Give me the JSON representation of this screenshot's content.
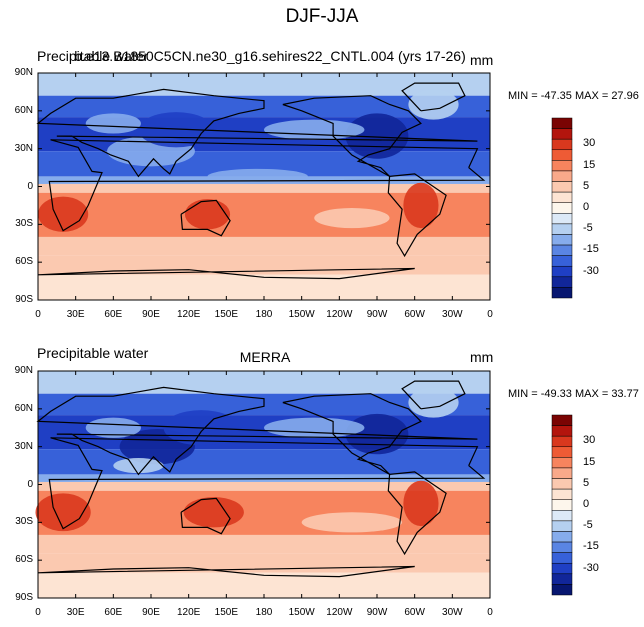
{
  "figure": {
    "title": "DJF-JJA"
  },
  "panels": [
    {
      "left_label": "Precipitable water",
      "center_label": "b.e13.B1850C5CN.ne30_g16.sehires22_CNTL.004 (yrs 17-26)",
      "units": "mm",
      "min_max_text": "MIN = -47.35 MAX =  27.96"
    },
    {
      "left_label": "Precipitable water",
      "center_label": "MERRA",
      "units": "mm",
      "min_max_text": "MIN = -49.33 MAX =  33.77"
    }
  ],
  "axes": {
    "x_ticks": [
      "0",
      "30E",
      "60E",
      "90E",
      "120E",
      "150E",
      "180",
      "150W",
      "120W",
      "90W",
      "60W",
      "30W",
      "0"
    ],
    "y_ticks": [
      "90N",
      "60N",
      "30N",
      "0",
      "30S",
      "60S",
      "90S"
    ]
  },
  "colorbar": {
    "labels": [
      "30",
      "15",
      "5",
      "0",
      "-5",
      "-15",
      "-30"
    ],
    "colors": [
      "#7a0403",
      "#b3150d",
      "#d9381e",
      "#ee5b35",
      "#f7845e",
      "#f9a98a",
      "#fbc9b0",
      "#fde4d3",
      "#fdf6ec",
      "#dce9f7",
      "#b5d0f0",
      "#86acec",
      "#5a85e3",
      "#3761d9",
      "#1f3fc4",
      "#112699",
      "#071670"
    ]
  },
  "palette": {
    "land_outline": "#000000",
    "deep_blue": "#1f3fc4",
    "mid_blue": "#3761d9",
    "light_blue": "#86acec",
    "pale_blue": "#b5d0f0",
    "pale_orange": "#fbc9b0",
    "orange": "#f7845e",
    "red": "#d9381e"
  }
}
